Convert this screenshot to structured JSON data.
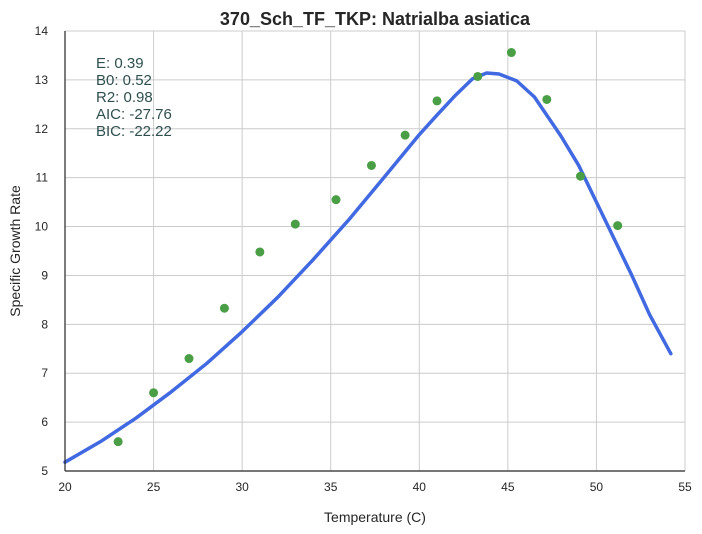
{
  "chart_data": {
    "type": "scatter",
    "title": "370_Sch_TF_TKP: Natrialba asiatica",
    "xlabel": "Temperature (C)",
    "ylabel": "Specific Growth Rate",
    "xlim": [
      20,
      55
    ],
    "ylim": [
      5,
      14
    ],
    "xticks": [
      "20",
      "25",
      "30",
      "35",
      "40",
      "45",
      "50",
      "55"
    ],
    "yticks": [
      "5",
      "6",
      "7",
      "8",
      "9",
      "10",
      "11",
      "12",
      "13",
      "14"
    ],
    "grid": true,
    "stats_lines": [
      "E:  0.39",
      "B0:  0.52",
      "R2:  0.98",
      "AIC: -27.76",
      "BIC: -22.22"
    ],
    "colors": {
      "points": "#4a9e45",
      "fit": "#4169e1"
    },
    "points": [
      {
        "x": 23.0,
        "y": 5.6
      },
      {
        "x": 25.0,
        "y": 6.6
      },
      {
        "x": 27.0,
        "y": 7.3
      },
      {
        "x": 29.0,
        "y": 8.33
      },
      {
        "x": 31.0,
        "y": 9.48
      },
      {
        "x": 33.0,
        "y": 10.05
      },
      {
        "x": 35.3,
        "y": 10.55
      },
      {
        "x": 37.3,
        "y": 11.25
      },
      {
        "x": 39.2,
        "y": 11.87
      },
      {
        "x": 41.0,
        "y": 12.57
      },
      {
        "x": 43.3,
        "y": 13.07
      },
      {
        "x": 45.2,
        "y": 13.56
      },
      {
        "x": 47.2,
        "y": 12.6
      },
      {
        "x": 49.1,
        "y": 11.03
      },
      {
        "x": 51.2,
        "y": 10.02
      }
    ],
    "fit_curve": [
      {
        "x": 20.0,
        "y": 5.18
      },
      {
        "x": 22.0,
        "y": 5.6
      },
      {
        "x": 24.0,
        "y": 6.08
      },
      {
        "x": 26.0,
        "y": 6.62
      },
      {
        "x": 28.0,
        "y": 7.2
      },
      {
        "x": 30.0,
        "y": 7.85
      },
      {
        "x": 32.0,
        "y": 8.55
      },
      {
        "x": 34.0,
        "y": 9.32
      },
      {
        "x": 36.0,
        "y": 10.13
      },
      {
        "x": 38.0,
        "y": 11.0
      },
      {
        "x": 40.0,
        "y": 11.88
      },
      {
        "x": 41.0,
        "y": 12.28
      },
      {
        "x": 42.0,
        "y": 12.67
      },
      {
        "x": 43.0,
        "y": 13.02
      },
      {
        "x": 43.8,
        "y": 13.14
      },
      {
        "x": 44.5,
        "y": 13.12
      },
      {
        "x": 45.5,
        "y": 12.98
      },
      {
        "x": 46.5,
        "y": 12.65
      },
      {
        "x": 48.0,
        "y": 11.85
      },
      {
        "x": 49.0,
        "y": 11.25
      },
      {
        "x": 50.0,
        "y": 10.5
      },
      {
        "x": 51.0,
        "y": 9.75
      },
      {
        "x": 52.0,
        "y": 9.0
      },
      {
        "x": 53.0,
        "y": 8.2
      },
      {
        "x": 54.2,
        "y": 7.4
      }
    ]
  }
}
